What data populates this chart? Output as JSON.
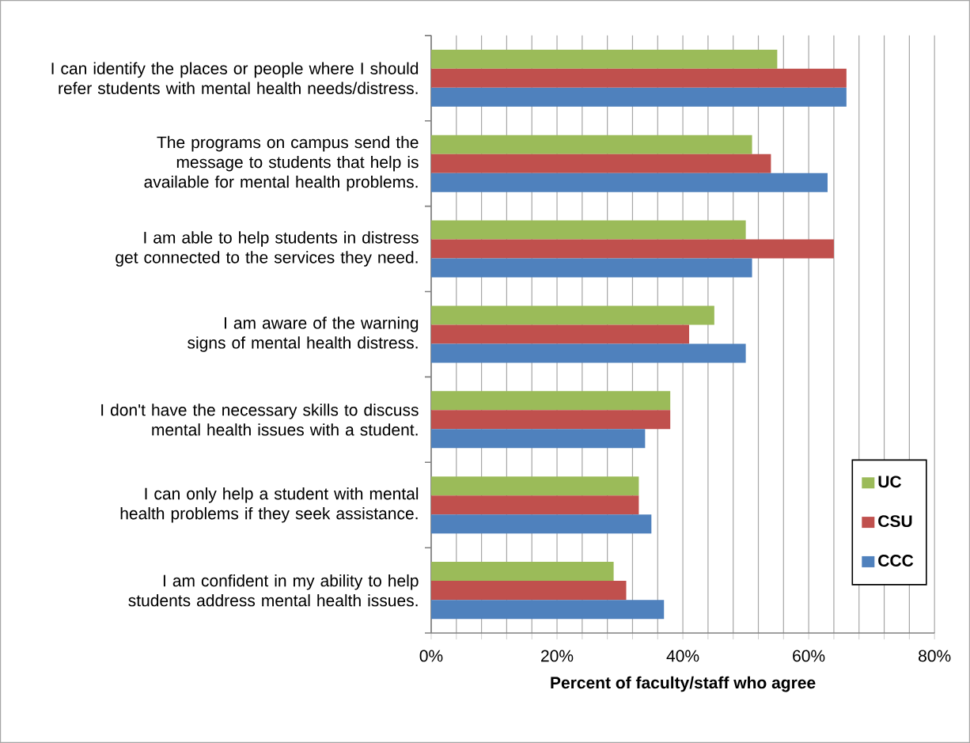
{
  "chart_data": {
    "type": "bar",
    "orientation": "horizontal",
    "xlabel": "Percent of faculty/staff who agree",
    "categories": [
      "I can identify the places or people where I should refer students with mental health needs/distress.",
      "The programs on campus send the message to students that help is available for mental health problems.",
      "I am able to help students in distress get connected to the services they need.",
      "I am aware of the warning signs of mental health distress.",
      "I don't have the necessary skills to discuss mental health issues with a student.",
      "I can only help a student with mental health problems if they seek assistance.",
      "I am confident in my ability to help students address mental health issues."
    ],
    "series": [
      {
        "name": "UC",
        "color": "#9bbb59",
        "values": [
          55,
          51,
          50,
          45,
          38,
          33,
          29
        ]
      },
      {
        "name": "CSU",
        "color": "#c0504d",
        "values": [
          66,
          54,
          64,
          41,
          38,
          33,
          31
        ]
      },
      {
        "name": "CCC",
        "color": "#4f81bd",
        "values": [
          66,
          63,
          51,
          50,
          34,
          35,
          37
        ]
      }
    ],
    "xlim": [
      0,
      80
    ],
    "xticks": [
      {
        "value": 0,
        "label": "0%"
      },
      {
        "value": 4,
        "label": null
      },
      {
        "value": 8,
        "label": null
      },
      {
        "value": 12,
        "label": null
      },
      {
        "value": 16,
        "label": null
      },
      {
        "value": 20,
        "label": "20%"
      },
      {
        "value": 24,
        "label": null
      },
      {
        "value": 28,
        "label": null
      },
      {
        "value": 32,
        "label": null
      },
      {
        "value": 36,
        "label": null
      },
      {
        "value": 40,
        "label": "40%"
      },
      {
        "value": 44,
        "label": null
      },
      {
        "value": 48,
        "label": null
      },
      {
        "value": 52,
        "label": null
      },
      {
        "value": 56,
        "label": null
      },
      {
        "value": 60,
        "label": "60%"
      },
      {
        "value": 64,
        "label": null
      },
      {
        "value": 68,
        "label": null
      },
      {
        "value": 72,
        "label": null
      },
      {
        "value": 76,
        "label": null
      },
      {
        "value": 80,
        "label": "80%"
      }
    ],
    "grid": "x",
    "legend": "bottom right"
  }
}
